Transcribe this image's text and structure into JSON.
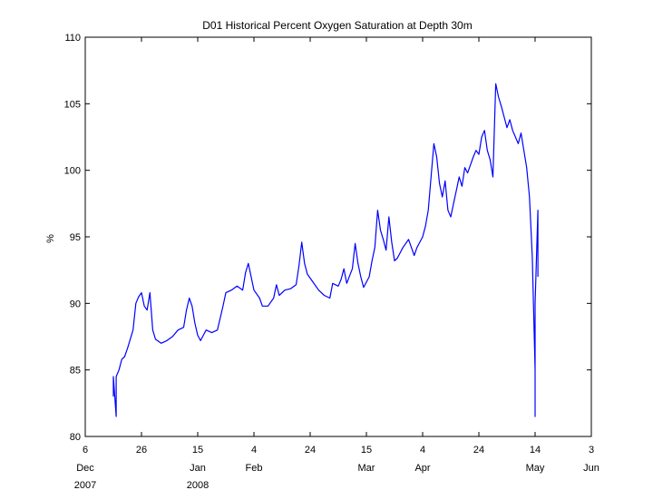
{
  "chart_data": {
    "type": "line",
    "title": "D01 Historical Percent Oxygen Saturation at Depth 30m",
    "xlabel": "",
    "ylabel": "%",
    "xlim": [
      "2007-12-06",
      "2008-06-03"
    ],
    "ylim": [
      80,
      110
    ],
    "grid": false,
    "x_tick_labels": [
      "6",
      "26",
      "15",
      "4",
      "24",
      "15",
      "4",
      "24",
      "14",
      "3"
    ],
    "x_tick_dates": [
      "2007-12-06",
      "2007-12-26",
      "2008-01-15",
      "2008-02-04",
      "2008-02-24",
      "2008-03-15",
      "2008-04-04",
      "2008-04-24",
      "2008-05-14",
      "2008-06-03"
    ],
    "month_labels": [
      {
        "date": "2007-12-06",
        "month": "Dec",
        "year": "2007"
      },
      {
        "date": "2008-01-15",
        "month": "Jan",
        "year": "2008"
      },
      {
        "date": "2008-02-04",
        "month": "Feb",
        "year": ""
      },
      {
        "date": "2008-03-15",
        "month": "Mar",
        "year": ""
      },
      {
        "date": "2008-04-04",
        "month": "Apr",
        "year": ""
      },
      {
        "date": "2008-05-14",
        "month": "May",
        "year": ""
      },
      {
        "date": "2008-06-03",
        "month": "Jun",
        "year": ""
      }
    ],
    "y_tick_labels": [
      "80",
      "85",
      "90",
      "95",
      "100",
      "105",
      "110"
    ],
    "series": [
      {
        "color": "#0000ff",
        "points": [
          [
            "2007-12-16",
            83.0
          ],
          [
            "2007-12-16",
            84.5
          ],
          [
            "2007-12-17",
            81.5
          ],
          [
            "2007-12-17",
            84.5
          ],
          [
            "2007-12-18",
            85.0
          ],
          [
            "2007-12-19",
            85.8
          ],
          [
            "2007-12-20",
            86.0
          ],
          [
            "2007-12-21",
            86.6
          ],
          [
            "2007-12-22",
            87.3
          ],
          [
            "2007-12-23",
            88.0
          ],
          [
            "2007-12-24",
            90.0
          ],
          [
            "2007-12-25",
            90.5
          ],
          [
            "2007-12-26",
            90.8
          ],
          [
            "2007-12-27",
            89.8
          ],
          [
            "2007-12-28",
            89.5
          ],
          [
            "2007-12-29",
            90.8
          ],
          [
            "2007-12-30",
            88.0
          ],
          [
            "2007-12-31",
            87.3
          ],
          [
            "2008-01-02",
            87.0
          ],
          [
            "2008-01-04",
            87.2
          ],
          [
            "2008-01-06",
            87.5
          ],
          [
            "2008-01-08",
            88.0
          ],
          [
            "2008-01-10",
            88.2
          ],
          [
            "2008-01-11",
            89.5
          ],
          [
            "2008-01-12",
            90.4
          ],
          [
            "2008-01-13",
            89.8
          ],
          [
            "2008-01-14",
            88.5
          ],
          [
            "2008-01-15",
            87.6
          ],
          [
            "2008-01-16",
            87.2
          ],
          [
            "2008-01-17",
            87.6
          ],
          [
            "2008-01-18",
            88.0
          ],
          [
            "2008-01-20",
            87.8
          ],
          [
            "2008-01-22",
            88.0
          ],
          [
            "2008-01-24",
            89.8
          ],
          [
            "2008-01-25",
            90.8
          ],
          [
            "2008-01-27",
            91.0
          ],
          [
            "2008-01-29",
            91.3
          ],
          [
            "2008-01-31",
            91.0
          ],
          [
            "2008-02-01",
            92.3
          ],
          [
            "2008-02-02",
            93.0
          ],
          [
            "2008-02-03",
            92.0
          ],
          [
            "2008-02-04",
            91.0
          ],
          [
            "2008-02-06",
            90.4
          ],
          [
            "2008-02-07",
            89.8
          ],
          [
            "2008-02-09",
            89.8
          ],
          [
            "2008-02-11",
            90.4
          ],
          [
            "2008-02-12",
            91.4
          ],
          [
            "2008-02-13",
            90.6
          ],
          [
            "2008-02-15",
            91.0
          ],
          [
            "2008-02-17",
            91.1
          ],
          [
            "2008-02-19",
            91.4
          ],
          [
            "2008-02-20",
            92.8
          ],
          [
            "2008-02-21",
            94.6
          ],
          [
            "2008-02-22",
            93.0
          ],
          [
            "2008-02-23",
            92.2
          ],
          [
            "2008-02-25",
            91.6
          ],
          [
            "2008-02-27",
            91.0
          ],
          [
            "2008-02-29",
            90.6
          ],
          [
            "2008-03-02",
            90.4
          ],
          [
            "2008-03-03",
            91.5
          ],
          [
            "2008-03-05",
            91.3
          ],
          [
            "2008-03-06",
            91.8
          ],
          [
            "2008-03-07",
            92.6
          ],
          [
            "2008-03-08",
            91.5
          ],
          [
            "2008-03-10",
            92.6
          ],
          [
            "2008-03-11",
            94.5
          ],
          [
            "2008-03-12",
            93.0
          ],
          [
            "2008-03-13",
            92.0
          ],
          [
            "2008-03-14",
            91.2
          ],
          [
            "2008-03-15",
            91.6
          ],
          [
            "2008-03-16",
            92.0
          ],
          [
            "2008-03-17",
            93.2
          ],
          [
            "2008-03-18",
            94.2
          ],
          [
            "2008-03-19",
            97.0
          ],
          [
            "2008-03-20",
            95.5
          ],
          [
            "2008-03-21",
            94.8
          ],
          [
            "2008-03-22",
            94.0
          ],
          [
            "2008-03-23",
            96.5
          ],
          [
            "2008-03-24",
            94.6
          ],
          [
            "2008-03-25",
            93.2
          ],
          [
            "2008-03-26",
            93.4
          ],
          [
            "2008-03-28",
            94.2
          ],
          [
            "2008-03-30",
            94.8
          ],
          [
            "2008-03-31",
            94.2
          ],
          [
            "2008-04-01",
            93.6
          ],
          [
            "2008-04-02",
            94.2
          ],
          [
            "2008-04-03",
            94.6
          ],
          [
            "2008-04-04",
            95.0
          ],
          [
            "2008-04-05",
            95.8
          ],
          [
            "2008-04-06",
            97.0
          ],
          [
            "2008-04-07",
            99.5
          ],
          [
            "2008-04-08",
            102.0
          ],
          [
            "2008-04-09",
            101.0
          ],
          [
            "2008-04-10",
            99.0
          ],
          [
            "2008-04-11",
            98.0
          ],
          [
            "2008-04-12",
            99.2
          ],
          [
            "2008-04-13",
            97.0
          ],
          [
            "2008-04-14",
            96.5
          ],
          [
            "2008-04-15",
            97.5
          ],
          [
            "2008-04-16",
            98.5
          ],
          [
            "2008-04-17",
            99.5
          ],
          [
            "2008-04-18",
            98.8
          ],
          [
            "2008-04-19",
            100.2
          ],
          [
            "2008-04-20",
            99.8
          ],
          [
            "2008-04-21",
            100.4
          ],
          [
            "2008-04-22",
            101.0
          ],
          [
            "2008-04-23",
            101.5
          ],
          [
            "2008-04-24",
            101.2
          ],
          [
            "2008-04-25",
            102.5
          ],
          [
            "2008-04-26",
            103.0
          ],
          [
            "2008-04-27",
            101.5
          ],
          [
            "2008-04-28",
            100.8
          ],
          [
            "2008-04-29",
            99.5
          ],
          [
            "2008-04-30",
            106.5
          ],
          [
            "2008-05-01",
            105.5
          ],
          [
            "2008-05-02",
            104.8
          ],
          [
            "2008-05-03",
            104.0
          ],
          [
            "2008-05-04",
            103.2
          ],
          [
            "2008-05-05",
            103.8
          ],
          [
            "2008-05-06",
            103.0
          ],
          [
            "2008-05-07",
            102.5
          ],
          [
            "2008-05-08",
            102.0
          ],
          [
            "2008-05-09",
            102.8
          ],
          [
            "2008-05-10",
            101.5
          ],
          [
            "2008-05-11",
            100.2
          ],
          [
            "2008-05-12",
            98.0
          ],
          [
            "2008-05-13",
            93.5
          ],
          [
            "2008-05-14",
            85.0
          ],
          [
            "2008-05-14",
            81.5
          ],
          [
            "2008-05-14",
            90.0
          ],
          [
            "2008-05-15",
            97.0
          ],
          [
            "2008-05-15",
            92.0
          ]
        ]
      }
    ]
  }
}
